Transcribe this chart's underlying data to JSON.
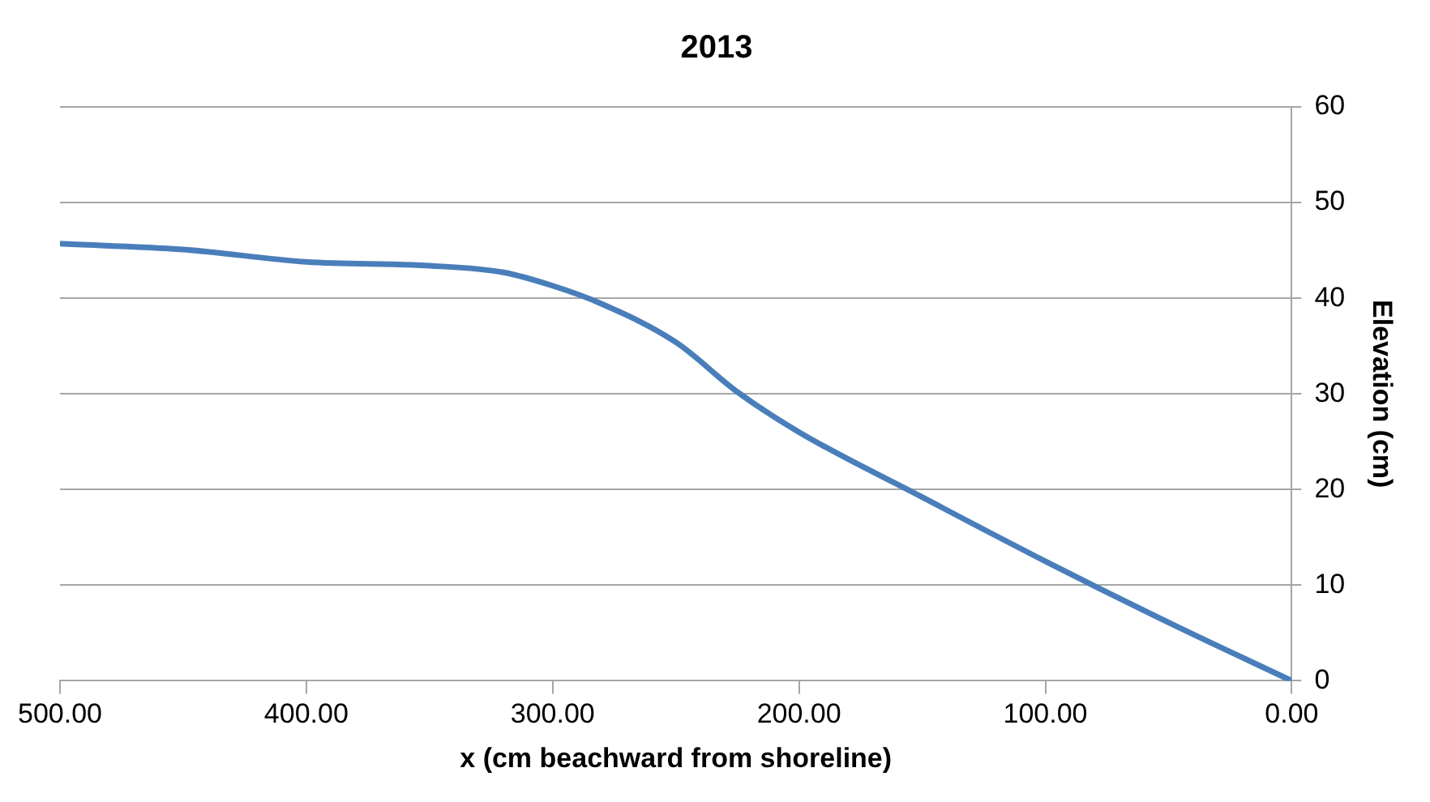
{
  "chart_data": {
    "type": "line",
    "title": "2013",
    "xlabel": "x (cm beachward from shoreline)",
    "ylabel": "Elevation (cm)",
    "x": [
      500,
      450,
      400,
      350,
      320,
      300,
      280,
      250,
      225,
      200,
      150,
      100,
      50,
      0
    ],
    "series": [
      {
        "color": "#4a7ebb",
        "values": [
          45.7,
          45.1,
          43.8,
          43.4,
          42.7,
          41.3,
          39.4,
          35.4,
          30.2,
          26,
          19.2,
          12.5,
          6.1,
          0
        ]
      }
    ],
    "xlim": [
      500,
      0
    ],
    "xticks": [
      {
        "value": 500,
        "label": "500.00"
      },
      {
        "value": 400,
        "label": "400.00"
      },
      {
        "value": 300,
        "label": "300.00"
      },
      {
        "value": 200,
        "label": "200.00"
      },
      {
        "value": 100,
        "label": "100.00"
      },
      {
        "value": 0,
        "label": "0.00"
      }
    ],
    "ylim": [
      0,
      60
    ],
    "yticks": [
      0,
      10,
      20,
      30,
      40,
      50,
      60
    ],
    "grid": "y",
    "legend": false,
    "marker": "none",
    "line_style": "solid"
  }
}
